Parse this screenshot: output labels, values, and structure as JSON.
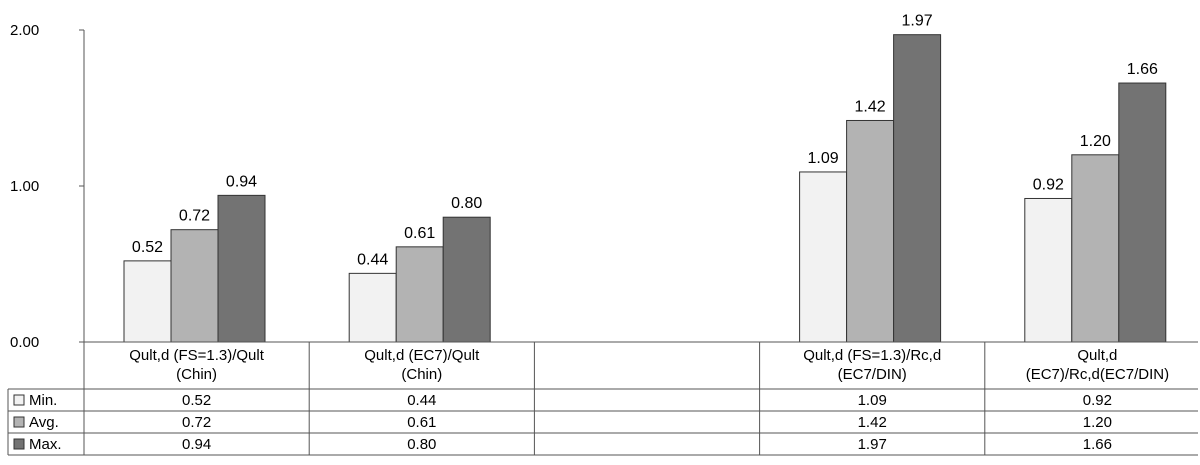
{
  "chart_data": {
    "type": "bar",
    "categories": [
      [
        "Qult,d (FS=1.3)/Qult",
        "(Chin)"
      ],
      [
        "Qult,d (EC7)/Qult",
        "(Chin)"
      ],
      [
        "",
        ""
      ],
      [
        "Qult,d (FS=1.3)/Rc,d",
        "(EC7/DIN)"
      ],
      [
        "Qult,d",
        "(EC7)/Rc,d(EC7/DIN)"
      ]
    ],
    "series": [
      {
        "name": "Min.",
        "color": "#f2f2f2",
        "values": [
          0.52,
          0.44,
          null,
          1.09,
          0.92
        ],
        "labels": [
          "0.52",
          "0.44",
          "",
          "1.09",
          "0.92"
        ]
      },
      {
        "name": "Avg.",
        "color": "#b3b3b3",
        "values": [
          0.72,
          0.61,
          null,
          1.42,
          1.2
        ],
        "labels": [
          "0.72",
          "0.61",
          "",
          "1.42",
          "1.20"
        ]
      },
      {
        "name": "Max.",
        "color": "#737373",
        "values": [
          0.94,
          0.8,
          null,
          1.97,
          1.66
        ],
        "labels": [
          "0.94",
          "0.80",
          "",
          "1.97",
          "1.66"
        ]
      }
    ],
    "ylim": [
      0,
      2
    ],
    "yticks": [
      0,
      1,
      2
    ],
    "ytick_labels": [
      "0.00",
      "1.00",
      "2.00"
    ],
    "legend": "data-table-left",
    "grid": false,
    "data_table": true
  }
}
